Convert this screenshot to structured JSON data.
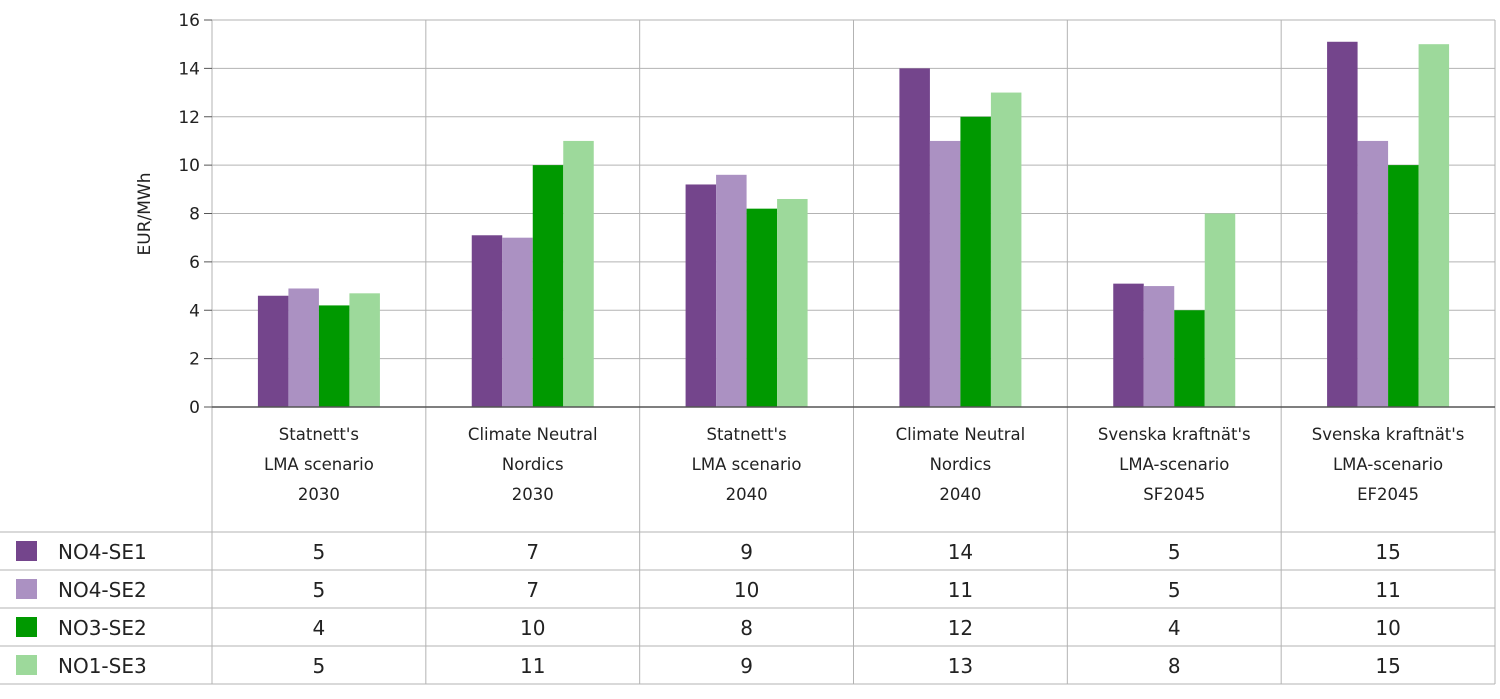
{
  "chart_data": {
    "type": "bar",
    "title": "",
    "xlabel": "",
    "ylabel": "EUR/MWh",
    "ylim": [
      0,
      16
    ],
    "yticks": [
      0,
      2,
      4,
      6,
      8,
      10,
      12,
      14,
      16
    ],
    "grid": true,
    "legend": "table-left",
    "categories": [
      [
        "Statnett's",
        "LMA scenario",
        "2030"
      ],
      [
        "Climate Neutral",
        "Nordics",
        "2030"
      ],
      [
        "Statnett's",
        "LMA scenario",
        "2040"
      ],
      [
        "Climate Neutral",
        "Nordics",
        "2040"
      ],
      [
        "Svenska kraftnät's",
        "LMA-scenario",
        "SF2045"
      ],
      [
        "Svenska kraftnät's",
        "LMA-scenario",
        "EF2045"
      ]
    ],
    "series": [
      {
        "name": "NO4-SE1",
        "color": "#74458c",
        "values": [
          4.6,
          7.1,
          9.2,
          14.0,
          5.1,
          15.1
        ],
        "table": [
          "5",
          "7",
          "9",
          "14",
          "5",
          "15"
        ]
      },
      {
        "name": "NO4-SE2",
        "color": "#ab91c2",
        "values": [
          4.9,
          7.0,
          9.6,
          11.0,
          5.0,
          11.0
        ],
        "table": [
          "5",
          "7",
          "10",
          "11",
          "5",
          "11"
        ]
      },
      {
        "name": "NO3-SE2",
        "color": "#009900",
        "values": [
          4.2,
          10.0,
          8.2,
          12.0,
          4.0,
          10.0
        ],
        "table": [
          "4",
          "10",
          "8",
          "12",
          "4",
          "10"
        ]
      },
      {
        "name": "NO1-SE3",
        "color": "#9dd99b",
        "values": [
          4.7,
          11.0,
          8.6,
          13.0,
          8.0,
          15.0
        ],
        "table": [
          "5",
          "11",
          "9",
          "13",
          "8",
          "15"
        ]
      }
    ]
  }
}
